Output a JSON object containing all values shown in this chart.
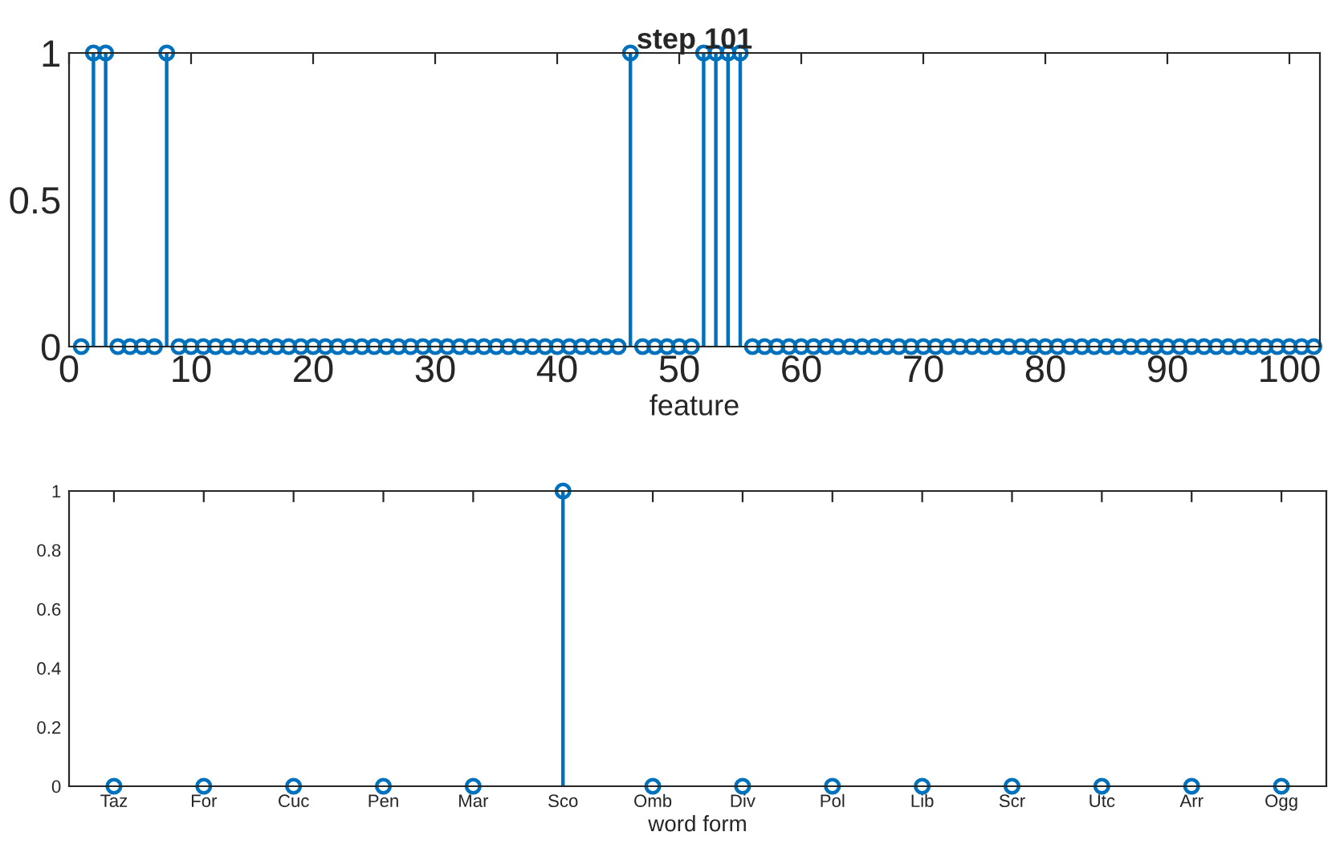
{
  "chart_data": [
    {
      "type": "lollipop",
      "title": "step 101",
      "xlabel": "feature",
      "x": [
        1,
        2,
        3,
        4,
        5,
        6,
        7,
        8,
        9,
        10,
        11,
        12,
        13,
        14,
        15,
        16,
        17,
        18,
        19,
        20,
        21,
        22,
        23,
        24,
        25,
        26,
        27,
        28,
        29,
        30,
        31,
        32,
        33,
        34,
        35,
        36,
        37,
        38,
        39,
        40,
        41,
        42,
        43,
        44,
        45,
        46,
        47,
        48,
        49,
        50,
        51,
        52,
        53,
        54,
        55,
        56,
        57,
        58,
        59,
        60,
        61,
        62,
        63,
        64,
        65,
        66,
        67,
        68,
        69,
        70,
        71,
        72,
        73,
        74,
        75,
        76,
        77,
        78,
        79,
        80,
        81,
        82,
        83,
        84,
        85,
        86,
        87,
        88,
        89,
        90,
        91,
        92,
        93,
        94,
        95,
        96,
        97,
        98,
        99,
        100,
        101,
        102
      ],
      "values": [
        0,
        1,
        1,
        0,
        0,
        0,
        0,
        1,
        0,
        0,
        0,
        0,
        0,
        0,
        0,
        0,
        0,
        0,
        0,
        0,
        0,
        0,
        0,
        0,
        0,
        0,
        0,
        0,
        0,
        0,
        0,
        0,
        0,
        0,
        0,
        0,
        0,
        0,
        0,
        0,
        0,
        0,
        0,
        0,
        0,
        1,
        0,
        0,
        0,
        0,
        0,
        1,
        1,
        1,
        1,
        0,
        0,
        0,
        0,
        0,
        0,
        0,
        0,
        0,
        0,
        0,
        0,
        0,
        0,
        0,
        0,
        0,
        0,
        0,
        0,
        0,
        0,
        0,
        0,
        0,
        0,
        0,
        0,
        0,
        0,
        0,
        0,
        0,
        0,
        0,
        0,
        0,
        0,
        0,
        0,
        0,
        0,
        0,
        0,
        0,
        0,
        0
      ],
      "color": "#0072bd",
      "marker": "circle",
      "xlim": [
        0,
        102.5
      ],
      "xticks": [
        0,
        10,
        20,
        30,
        40,
        50,
        60,
        70,
        80,
        90,
        100
      ],
      "ylim": [
        0,
        1
      ],
      "yticks": [
        0,
        0.5,
        1
      ],
      "grid": false
    },
    {
      "type": "lollipop",
      "xlabel": "word form",
      "categories": [
        "Taz",
        "For",
        "Cuc",
        "Pen",
        "Mar",
        "Sco",
        "Omb",
        "Div",
        "Pol",
        "Lib",
        "Scr",
        "Utc",
        "Arr",
        "Ogg"
      ],
      "values": [
        0,
        0,
        0,
        0,
        0,
        1,
        0,
        0,
        0,
        0,
        0,
        0,
        0,
        0
      ],
      "color": "#0072bd",
      "marker": "circle",
      "ylim": [
        0,
        1
      ],
      "yticks": [
        0,
        0.2,
        0.4,
        0.6,
        0.8,
        1
      ],
      "grid": false
    }
  ]
}
